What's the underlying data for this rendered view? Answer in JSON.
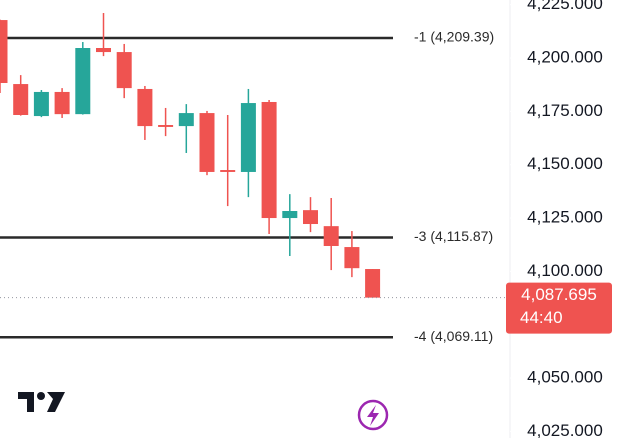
{
  "chart_data": {
    "type": "candlestick",
    "open": [
      4217.8,
      4187.8,
      4172.8,
      4184.1,
      4173.7,
      4204.7,
      4202.8,
      4185.5,
      4168.6,
      4168.1,
      4174.2,
      4147.5,
      4146.6,
      4179.4,
      4125.0,
      4128.7,
      4121.2,
      4111.4,
      4101.1
    ],
    "high": [
      4218.0,
      4192.0,
      4185.0,
      4185.9,
      4207.5,
      4221.1,
      4206.6,
      4186.9,
      4176.6,
      4178.4,
      4175.2,
      4173.3,
      4185.5,
      4180.3,
      4136.2,
      4134.8,
      4134.4,
      4118.9,
      4101.1
    ],
    "low": [
      4183.6,
      4173.0,
      4172.3,
      4171.9,
      4173.5,
      4200.9,
      4181.2,
      4161.6,
      4163.4,
      4155.5,
      4145.1,
      4130.6,
      4134.8,
      4117.5,
      4107.2,
      4118.4,
      4100.6,
      4097.3,
      4087.7
    ],
    "close": [
      4188.3,
      4173.3,
      4184.1,
      4173.7,
      4204.7,
      4202.8,
      4185.9,
      4168.1,
      4167.7,
      4174.2,
      4146.6,
      4146.6,
      4178.9,
      4125.0,
      4128.3,
      4122.2,
      4111.9,
      4101.5,
      4087.7
    ],
    "up_color": "#26a69a",
    "down_color": "#ef5350",
    "ylim": [
      4021.9,
      4227.2
    ],
    "yticks": [
      {
        "value": 4225,
        "label": "4,225.000"
      },
      {
        "value": 4200,
        "label": "4,200.000"
      },
      {
        "value": 4175,
        "label": "4,175.000"
      },
      {
        "value": 4150,
        "label": "4,150.000"
      },
      {
        "value": 4125,
        "label": "4,125.000"
      },
      {
        "value": 4100,
        "label": "4,100.000"
      },
      {
        "value": 4050,
        "label": "4,050.000"
      },
      {
        "value": 4025,
        "label": "4,025.000"
      }
    ],
    "levels": [
      {
        "value": 4209.39,
        "label": "-1 (4,209.39)"
      },
      {
        "value": 4115.87,
        "label": "-3 (4,115.87)"
      },
      {
        "value": 4069.11,
        "label": "-4 (4,069.11)"
      }
    ],
    "last_price": {
      "value": 4087.695,
      "label": "4,087.695"
    },
    "countdown": "44:40"
  }
}
